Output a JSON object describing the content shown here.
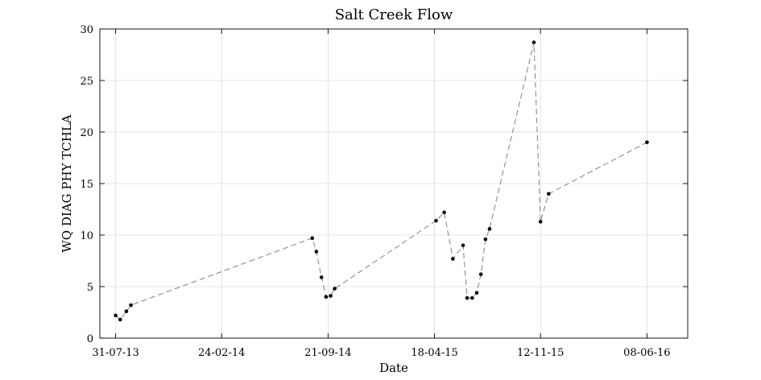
{
  "chart_data": {
    "type": "line",
    "title": "Salt Creek Flow",
    "xlabel": "Date",
    "ylabel": "WQ DIAG PHY TCHLA",
    "x_axis": {
      "scale": "date",
      "range": [
        "2013-06-30",
        "2016-08-27"
      ],
      "ticks": [
        {
          "date": "2013-07-31",
          "label": "31-07-13"
        },
        {
          "date": "2014-02-24",
          "label": "24-02-14"
        },
        {
          "date": "2014-09-21",
          "label": "21-09-14"
        },
        {
          "date": "2015-04-18",
          "label": "18-04-15"
        },
        {
          "date": "2015-11-12",
          "label": "12-11-15"
        },
        {
          "date": "2016-06-08",
          "label": "08-06-16"
        }
      ]
    },
    "y_axis": {
      "range": [
        0,
        30
      ],
      "ticks": [
        0,
        5,
        10,
        15,
        20,
        25,
        30
      ]
    },
    "grid": true,
    "legend": "none",
    "line_style": "dashed",
    "colors": {
      "line": "#8c8c8c",
      "marker": "#000000",
      "grid": "#dcdcdc",
      "axis": "#000000"
    },
    "series": [
      {
        "points": [
          {
            "x": "2013-07-31",
            "y": 2.2
          },
          {
            "x": "2013-08-09",
            "y": 1.8
          },
          {
            "x": "2013-08-21",
            "y": 2.6
          },
          {
            "x": "2013-08-30",
            "y": 3.2
          },
          {
            "x": "2014-08-21",
            "y": 9.7
          },
          {
            "x": "2014-08-29",
            "y": 8.4
          },
          {
            "x": "2014-09-08",
            "y": 5.9
          },
          {
            "x": "2014-09-17",
            "y": 4.0
          },
          {
            "x": "2014-09-26",
            "y": 4.1
          },
          {
            "x": "2014-10-04",
            "y": 4.8
          },
          {
            "x": "2015-04-21",
            "y": 11.4
          },
          {
            "x": "2015-05-07",
            "y": 12.2
          },
          {
            "x": "2015-05-24",
            "y": 7.7
          },
          {
            "x": "2015-06-13",
            "y": 9.0
          },
          {
            "x": "2015-06-21",
            "y": 3.9
          },
          {
            "x": "2015-07-01",
            "y": 3.9
          },
          {
            "x": "2015-07-10",
            "y": 4.4
          },
          {
            "x": "2015-07-18",
            "y": 6.2
          },
          {
            "x": "2015-07-27",
            "y": 9.6
          },
          {
            "x": "2015-08-04",
            "y": 10.6
          },
          {
            "x": "2015-10-30",
            "y": 28.7
          },
          {
            "x": "2015-11-12",
            "y": 11.3
          },
          {
            "x": "2015-11-28",
            "y": 14.0
          },
          {
            "x": "2016-06-08",
            "y": 19.0
          }
        ]
      }
    ]
  }
}
